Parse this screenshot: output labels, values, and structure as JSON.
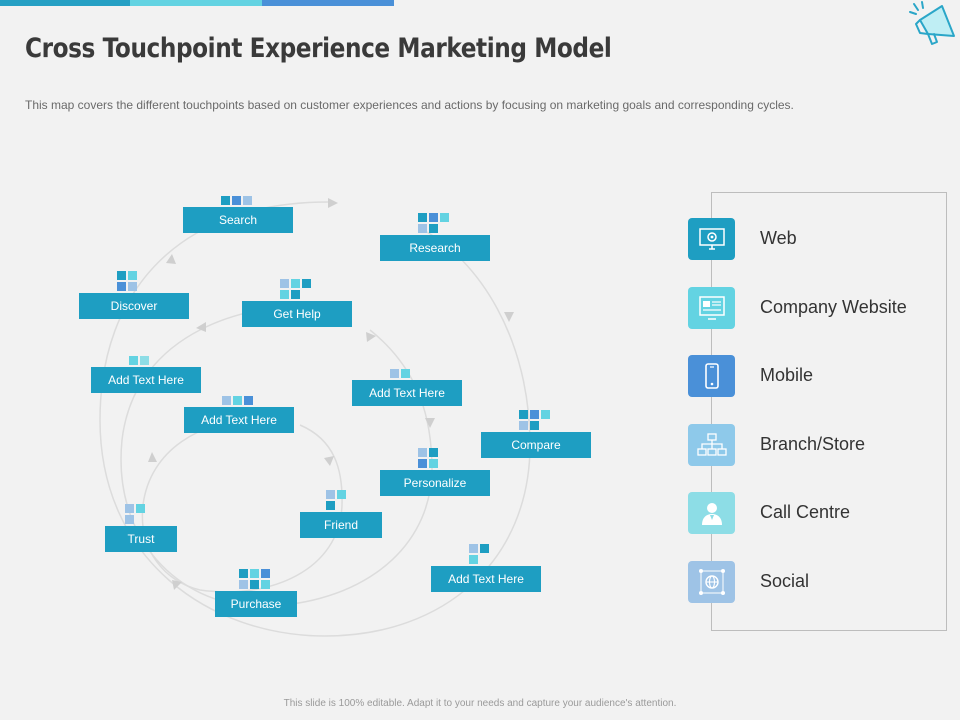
{
  "header": {
    "title": "Cross Touchpoint Experience Marketing Model",
    "subtitle": "This map covers the different  touchpoints based on customer experiences and actions by focusing on marketing goals and corresponding cycles."
  },
  "colors": {
    "accent_dark": "#1e9ec2",
    "accent_light": "#63d3e2",
    "accent_blue": "#4a90d8",
    "block_pale": "#9ec3e6"
  },
  "touchpoints": {
    "search": "Search",
    "research": "Research",
    "discover": "Discover",
    "get_help": "Get Help",
    "add_text_1": "Add Text Here",
    "add_text_2": "Add Text Here",
    "add_text_3": "Add Text Here",
    "add_text_4": "Add Text Here",
    "compare": "Compare",
    "personalize": "Personalize",
    "friend": "Friend",
    "trust": "Trust",
    "purchase": "Purchase"
  },
  "channels": [
    {
      "label": "Web",
      "icon": "gear-monitor-icon",
      "color": "#1e9ec2"
    },
    {
      "label": "Company Website",
      "icon": "website-icon",
      "color": "#63d3e2"
    },
    {
      "label": "Mobile",
      "icon": "mobile-phone-icon",
      "color": "#4a90d8"
    },
    {
      "label": "Branch/Store",
      "icon": "store-network-icon",
      "color": "#8ec9ea"
    },
    {
      "label": "Call Centre",
      "icon": "person-icon",
      "color": "#8ddde6"
    },
    {
      "label": "Social",
      "icon": "globe-network-icon",
      "color": "#9ec3e6"
    }
  ],
  "footer": {
    "text": "This slide is 100% editable. Adapt it to your needs and capture your audience's attention."
  }
}
